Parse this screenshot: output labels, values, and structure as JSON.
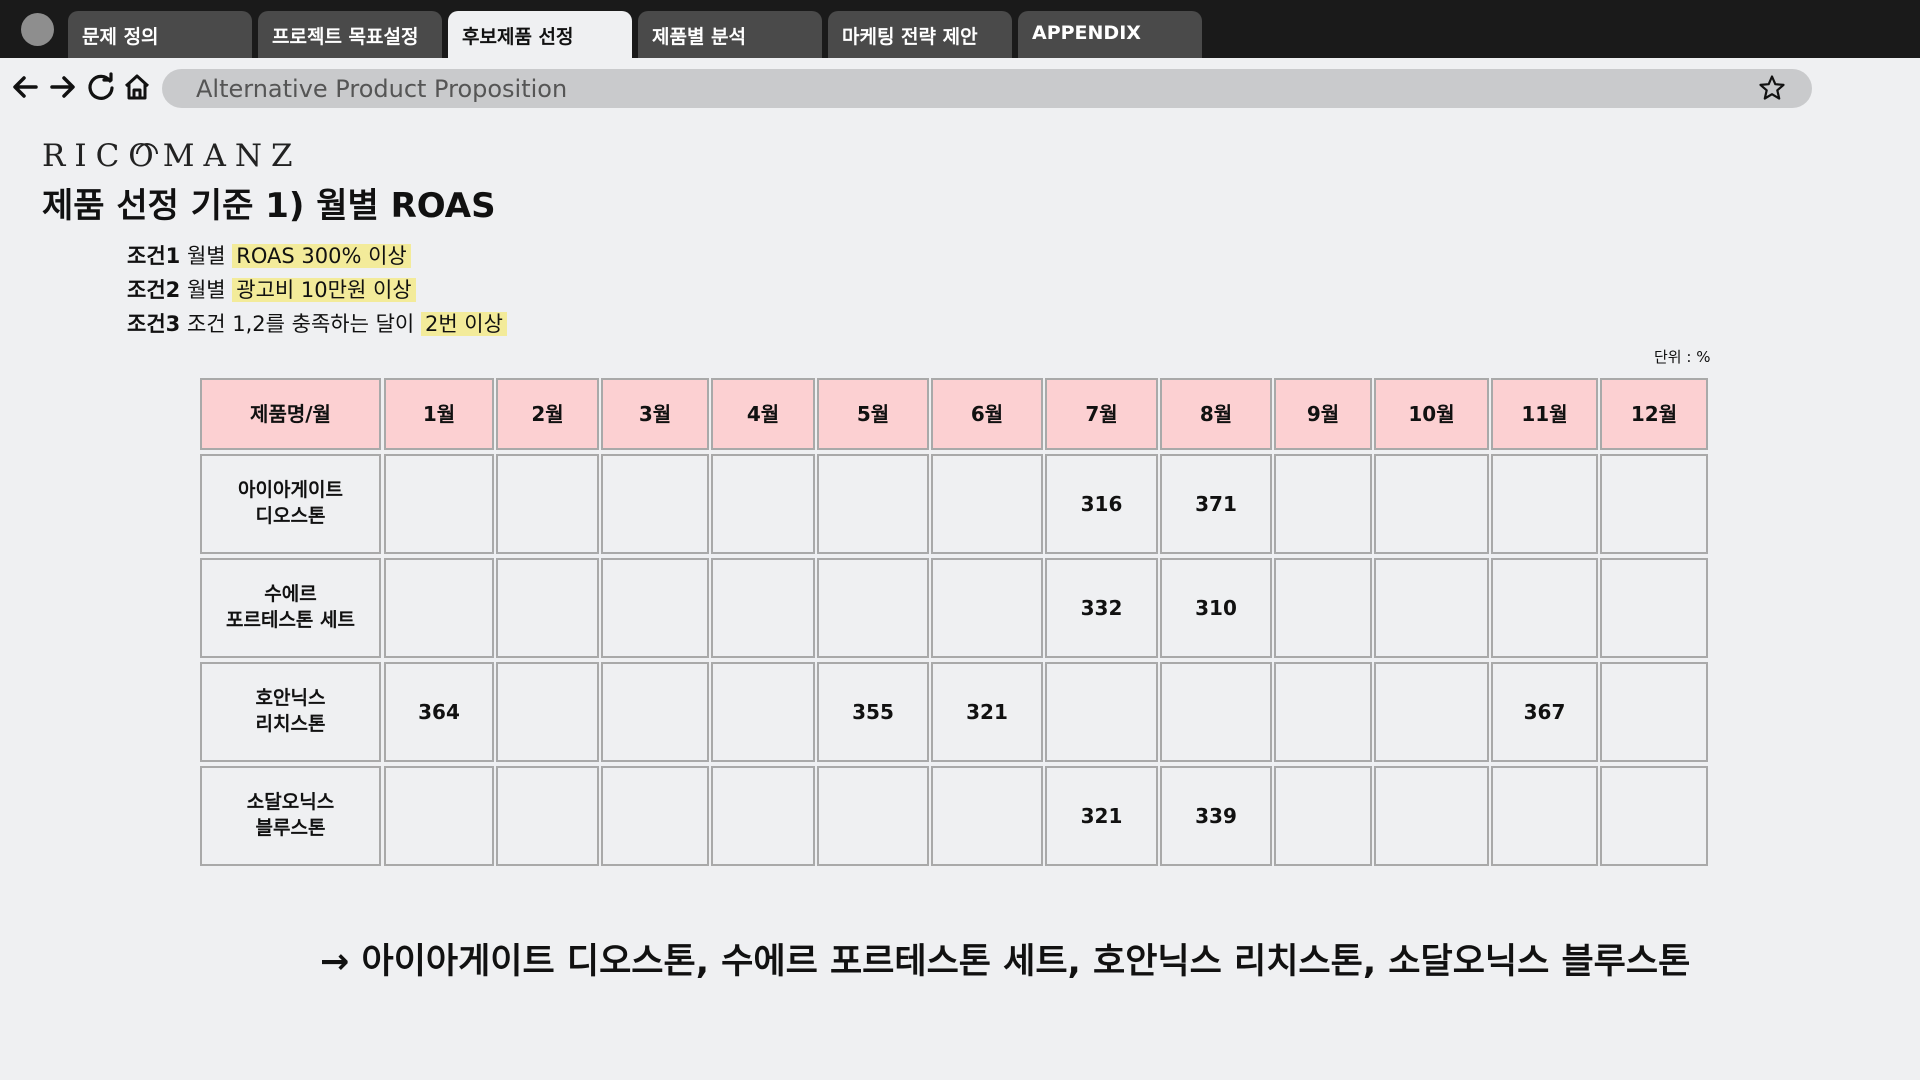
{
  "tabs": [
    {
      "label": "문제 정의",
      "active": false
    },
    {
      "label": "프로젝트 목표설정",
      "active": false
    },
    {
      "label": "후보제품 선정",
      "active": true
    },
    {
      "label": "제품별 분석",
      "active": false
    },
    {
      "label": "마케팅 전략 제안",
      "active": false
    },
    {
      "label": "APPENDIX",
      "active": false
    }
  ],
  "address_bar": {
    "url": "Alternative Product Proposition"
  },
  "nav_icons": [
    "back-arrow-icon",
    "forward-arrow-icon",
    "reload-icon",
    "home-icon",
    "star-icon"
  ],
  "logo": "RICOMANZ",
  "title": "제품 선정 기준 1) 월별 ROAS",
  "conditions": [
    {
      "label": "조건1",
      "text": "월별",
      "highlight": "ROAS 300% 이상"
    },
    {
      "label": "조건2",
      "text": "월별",
      "highlight": "광고비 10만원 이상"
    },
    {
      "label": "조건3",
      "text": "조건 1,2를 충족하는 달이",
      "highlight": "2번 이상"
    }
  ],
  "unit_note": "단위 : %",
  "table": {
    "headers": [
      "제품명/월",
      "1월",
      "2월",
      "3월",
      "4월",
      "5월",
      "6월",
      "7월",
      "8월",
      "9월",
      "10월",
      "11월",
      "12월"
    ],
    "rows": [
      {
        "product": "아이아게이트\n디오스톤",
        "values": [
          "",
          "",
          "",
          "",
          "",
          "",
          "316",
          "371",
          "",
          "",
          "",
          ""
        ]
      },
      {
        "product": "수에르\n포르테스톤 세트",
        "values": [
          "",
          "",
          "",
          "",
          "",
          "",
          "332",
          "310",
          "",
          "",
          "",
          ""
        ]
      },
      {
        "product": "호안닉스\n리치스톤",
        "values": [
          "364",
          "",
          "",
          "",
          "355",
          "321",
          "",
          "",
          "",
          "",
          "367",
          ""
        ]
      },
      {
        "product": "소달오닉스\n블루스톤",
        "values": [
          "",
          "",
          "",
          "",
          "",
          "",
          "321",
          "339",
          "",
          "",
          "",
          ""
        ]
      }
    ]
  },
  "conclusion": "→ 아이아게이트 디오스톤, 수에르 포르테스톤 세트, 호안닉스 리치스톤, 소달오닉스 블루스톤",
  "colors": {
    "tabbar": "#1a1a1a",
    "tab_inactive": "#4a4a4a",
    "page_bg": "#eff0f2",
    "header_cell": "#fcd0d2",
    "highlight": "#f3eb9a",
    "cell_border": "#a9a9a9"
  }
}
